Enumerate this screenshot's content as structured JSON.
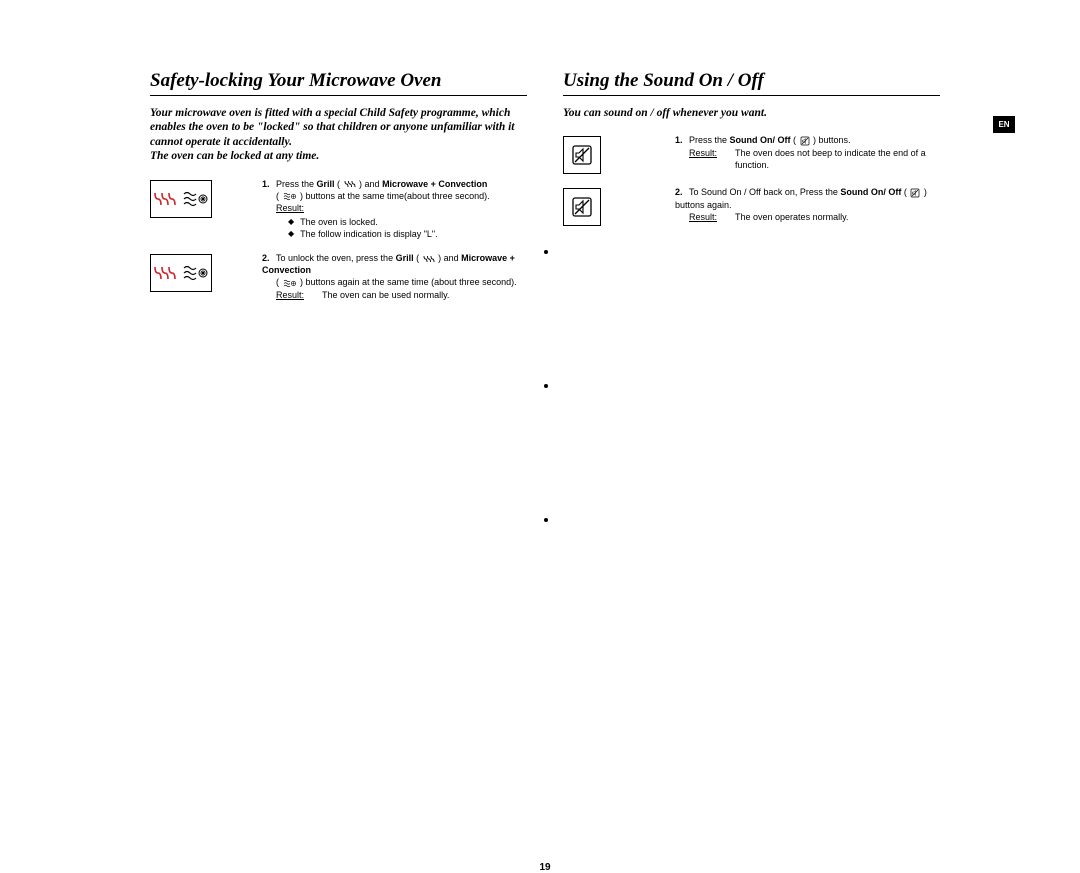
{
  "page_number": "19",
  "lang_tab": "EN",
  "colors": {
    "grill_icon": "#d2232a",
    "conv_icon": "#000000",
    "text": "#000000",
    "border": "#000000",
    "bg": "#ffffff"
  },
  "left": {
    "heading": "Safety-locking Your Microwave Oven",
    "intro": "Your microwave oven is fitted with a special Child Safety programme, which enables the oven to be \"locked\" so that children or anyone unfamiliar with it cannot operate it accidentally.\nThe oven can be locked at any time.",
    "steps": [
      {
        "num": "1.",
        "line1_a": "Press the ",
        "line1_b": "Grill",
        "line1_c": " ( ",
        "line1_d": " ) and ",
        "line1_e": "Microwave + Convection",
        "line2": " buttons at the same time(about three second).",
        "result_label": "Result:",
        "bullets": [
          "The oven is locked.",
          "The follow indication is display \"L\"."
        ]
      },
      {
        "num": "2.",
        "line1_a": "To unlock the oven, press the ",
        "line1_b": "Grill",
        "line1_c": " ( ",
        "line1_d": " ) and ",
        "line1_e": "Microwave + Convection",
        "line2": " buttons again at the same time (about three second).",
        "result_label": "Result:",
        "result_text": "The oven can be used normally."
      }
    ]
  },
  "right": {
    "heading": "Using the Sound On / Off",
    "intro": "You can sound on / off whenever you want.",
    "steps": [
      {
        "num": "1.",
        "line1_a": "Press the ",
        "line1_b": "Sound On/ Off",
        "line1_c": " ( ",
        "line1_d": " ) buttons.",
        "result_label": "Result:",
        "result_text": "The oven does not beep to indicate the end of a function."
      },
      {
        "num": "2.",
        "line1_a": "To Sound On / Off back on, Press the ",
        "line1_b": "Sound On/ Off",
        "line1_c": " ( ",
        "line1_d": " ) buttons again.",
        "result_label": "Result:",
        "result_text": "The oven operates normally."
      }
    ]
  }
}
